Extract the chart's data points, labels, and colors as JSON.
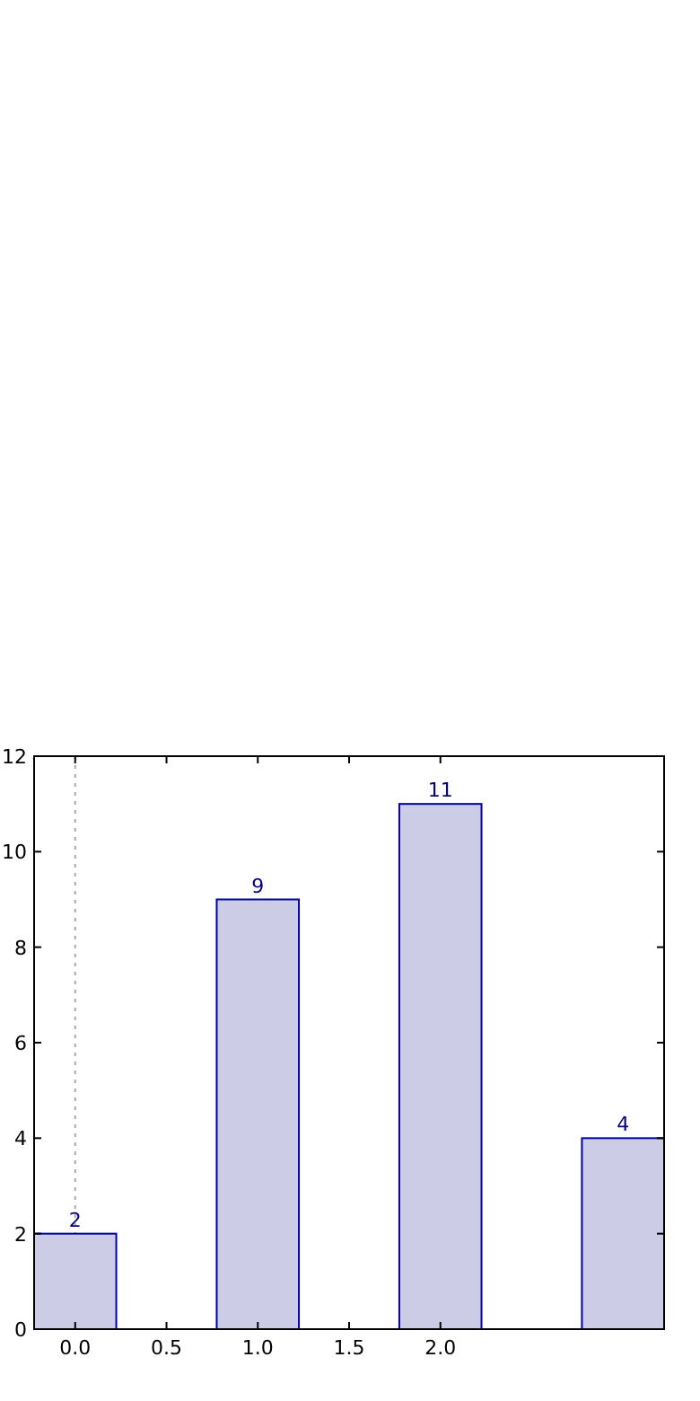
{
  "chart_data": {
    "type": "bar",
    "x": [
      0,
      1,
      2,
      3
    ],
    "values": [
      2,
      9,
      11,
      4
    ],
    "color": "#ccccE6",
    "data_labels": true,
    "xlim": [
      -0.225,
      3.225
    ],
    "xticks": [
      {
        "value": 0,
        "label": "0.0"
      },
      {
        "value": 0.5,
        "label": "0.5"
      },
      {
        "value": 1,
        "label": "1.0"
      },
      {
        "value": 1.5,
        "label": "1.5"
      },
      {
        "value": 2,
        "label": "2.0"
      }
    ],
    "ylim": [
      0,
      12
    ],
    "yticks": [
      0,
      2,
      4,
      6,
      8,
      10,
      12
    ],
    "grid": false,
    "ref_lines": [
      {
        "axis": "x",
        "value": 0,
        "color": "#aaaaaa",
        "line_style": "dotted"
      }
    ]
  }
}
